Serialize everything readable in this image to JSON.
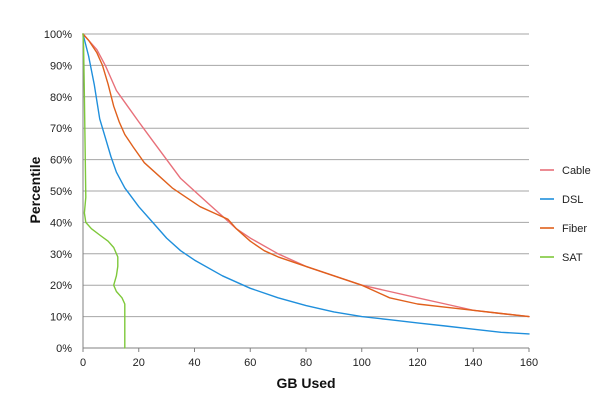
{
  "chart_data": {
    "type": "line",
    "title": "",
    "xlabel": "GB Used",
    "ylabel": "Percentile",
    "xlim": [
      0,
      160
    ],
    "ylim": [
      0,
      100
    ],
    "xticks": [
      0,
      20,
      40,
      60,
      80,
      100,
      120,
      140,
      160
    ],
    "yticks": [
      0,
      10,
      20,
      30,
      40,
      50,
      60,
      70,
      80,
      90,
      100
    ],
    "ytick_labels": [
      "0%",
      "10%",
      "20%",
      "30%",
      "40%",
      "50%",
      "60%",
      "70%",
      "80%",
      "90%",
      "100%"
    ],
    "grid": "horizontal",
    "legend_position": "right",
    "series": [
      {
        "name": "Cable",
        "color": "#e8707a",
        "points": [
          [
            0,
            100
          ],
          [
            2,
            98
          ],
          [
            5,
            95
          ],
          [
            8,
            90
          ],
          [
            12,
            82
          ],
          [
            16,
            77
          ],
          [
            20,
            72
          ],
          [
            25,
            66
          ],
          [
            30,
            60
          ],
          [
            35,
            54
          ],
          [
            40,
            50
          ],
          [
            45,
            46
          ],
          [
            50,
            42
          ],
          [
            55,
            38
          ],
          [
            60,
            35
          ],
          [
            70,
            30
          ],
          [
            80,
            26
          ],
          [
            90,
            23
          ],
          [
            100,
            20
          ],
          [
            110,
            18
          ],
          [
            120,
            16
          ],
          [
            130,
            14
          ],
          [
            140,
            12
          ],
          [
            150,
            11
          ],
          [
            160,
            10
          ]
        ]
      },
      {
        "name": "DSL",
        "color": "#1f8fdc",
        "points": [
          [
            0,
            100
          ],
          [
            2,
            93
          ],
          [
            4,
            84
          ],
          [
            6,
            73
          ],
          [
            8,
            67
          ],
          [
            10,
            61
          ],
          [
            12,
            56
          ],
          [
            15,
            51
          ],
          [
            20,
            45
          ],
          [
            25,
            40
          ],
          [
            30,
            35
          ],
          [
            35,
            31
          ],
          [
            40,
            28
          ],
          [
            50,
            23
          ],
          [
            60,
            19
          ],
          [
            70,
            16
          ],
          [
            80,
            13.5
          ],
          [
            90,
            11.5
          ],
          [
            100,
            10
          ],
          [
            110,
            9
          ],
          [
            120,
            8
          ],
          [
            130,
            7
          ],
          [
            140,
            6
          ],
          [
            150,
            5
          ],
          [
            160,
            4.5
          ]
        ]
      },
      {
        "name": "Fiber",
        "color": "#e0601c",
        "points": [
          [
            0,
            100
          ],
          [
            2,
            98
          ],
          [
            5,
            94
          ],
          [
            7,
            90
          ],
          [
            9,
            84
          ],
          [
            11,
            77
          ],
          [
            13,
            72
          ],
          [
            15,
            68
          ],
          [
            18,
            64
          ],
          [
            22,
            59
          ],
          [
            27,
            55
          ],
          [
            32,
            51
          ],
          [
            37,
            48
          ],
          [
            42,
            45
          ],
          [
            47,
            43
          ],
          [
            52,
            41
          ],
          [
            55,
            38
          ],
          [
            60,
            34
          ],
          [
            65,
            31
          ],
          [
            70,
            29
          ],
          [
            80,
            26
          ],
          [
            90,
            23
          ],
          [
            100,
            20
          ],
          [
            105,
            18
          ],
          [
            110,
            16
          ],
          [
            120,
            14
          ],
          [
            130,
            13
          ],
          [
            140,
            12
          ],
          [
            150,
            11
          ],
          [
            160,
            10
          ]
        ]
      },
      {
        "name": "SAT",
        "color": "#7ec83a",
        "points": [
          [
            0,
            100
          ],
          [
            0.2,
            96
          ],
          [
            0.5,
            80
          ],
          [
            0.8,
            62
          ],
          [
            0.9,
            55
          ],
          [
            1,
            48
          ],
          [
            0.5,
            43
          ],
          [
            1,
            40
          ],
          [
            3,
            38
          ],
          [
            6,
            36
          ],
          [
            9,
            34
          ],
          [
            11,
            32
          ],
          [
            12.5,
            29
          ],
          [
            12.5,
            26
          ],
          [
            12,
            23
          ],
          [
            11,
            20
          ],
          [
            12,
            18
          ],
          [
            14,
            16
          ],
          [
            15,
            14
          ],
          [
            15,
            0
          ]
        ]
      }
    ]
  }
}
